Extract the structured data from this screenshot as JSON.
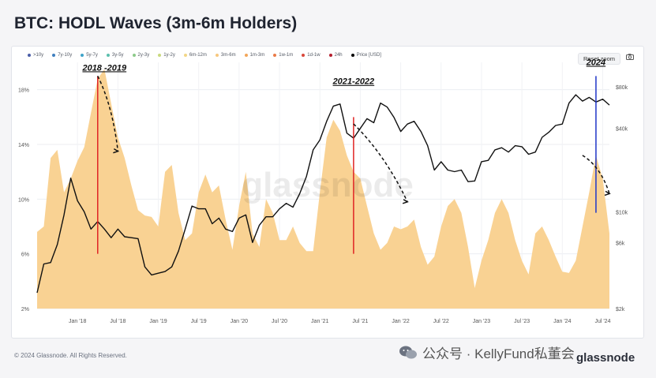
{
  "page": {
    "title": "BTC: HODL Waves (3m-6m Holders)",
    "reset_zoom": "Reset zoom",
    "copyright": "© 2024 Glassnode. All Rights Reserved.",
    "wechat_text": "公众号 · KellyFund私董会",
    "brand": "glassnode",
    "watermark": "glassnode",
    "camera_icon": "camera-icon",
    "wechat_icon": "wechat-icon"
  },
  "legend": [
    {
      "label": ">10y",
      "color": "#4a5ea8"
    },
    {
      "label": "7y-10y",
      "color": "#3f7fbf"
    },
    {
      "label": "5y-7y",
      "color": "#3fa3c9"
    },
    {
      "label": "3y-5y",
      "color": "#5cbfae"
    },
    {
      "label": "2y-3y",
      "color": "#8cca8a"
    },
    {
      "label": "1y-2y",
      "color": "#c9d97d"
    },
    {
      "label": "6m-12m",
      "color": "#f2d686"
    },
    {
      "label": "3m-6m",
      "color": "#f7c77d"
    },
    {
      "label": "1m-3m",
      "color": "#f2a65a"
    },
    {
      "label": "1w-1m",
      "color": "#ea7b48"
    },
    {
      "label": "1d-1w",
      "color": "#d9483b"
    },
    {
      "label": "24h",
      "color": "#b51f2e"
    },
    {
      "label": "Price [USD]",
      "color": "#000000"
    }
  ],
  "annotations": [
    "2018 -2019",
    "2021-2022",
    "2024"
  ],
  "chart_data": {
    "type": "area",
    "x_ticks": [
      "Jan '18",
      "Jul '18",
      "Jan '19",
      "Jul '19",
      "Jan '20",
      "Jul '20",
      "Jan '21",
      "Jul '21",
      "Jan '22",
      "Jul '22",
      "Jan '23",
      "Jul '23",
      "Jan '24",
      "Jul '24"
    ],
    "y_left_ticks": [
      "18%",
      "14%",
      "10%",
      "6%",
      "2%"
    ],
    "y_right_ticks": [
      "$80k",
      "$40k",
      "$10k",
      "$6k",
      "$2k"
    ],
    "y_left_range": [
      2,
      20
    ],
    "y_right_scale": "log",
    "grid": true,
    "legend_position": "top",
    "series": [
      {
        "name": "3m-6m",
        "axis": "left",
        "color": "#f9d293",
        "x": [
          "2017-07",
          "2017-08",
          "2017-09",
          "2017-10",
          "2017-11",
          "2017-12",
          "2018-01",
          "2018-02",
          "2018-03",
          "2018-04",
          "2018-05",
          "2018-06",
          "2018-07",
          "2018-08",
          "2018-09",
          "2018-10",
          "2018-11",
          "2018-12",
          "2019-01",
          "2019-02",
          "2019-03",
          "2019-04",
          "2019-05",
          "2019-06",
          "2019-07",
          "2019-08",
          "2019-09",
          "2019-10",
          "2019-11",
          "2019-12",
          "2020-01",
          "2020-02",
          "2020-03",
          "2020-04",
          "2020-05",
          "2020-06",
          "2020-07",
          "2020-08",
          "2020-09",
          "2020-10",
          "2020-11",
          "2020-12",
          "2021-01",
          "2021-02",
          "2021-03",
          "2021-04",
          "2021-05",
          "2021-06",
          "2021-07",
          "2021-08",
          "2021-09",
          "2021-10",
          "2021-11",
          "2021-12",
          "2022-01",
          "2022-02",
          "2022-03",
          "2022-04",
          "2022-05",
          "2022-06",
          "2022-07",
          "2022-08",
          "2022-09",
          "2022-10",
          "2022-11",
          "2022-12",
          "2023-01",
          "2023-02",
          "2023-03",
          "2023-04",
          "2023-05",
          "2023-06",
          "2023-07",
          "2023-08",
          "2023-09",
          "2023-10",
          "2023-11",
          "2023-12",
          "2024-01",
          "2024-02",
          "2024-03",
          "2024-04",
          "2024-05",
          "2024-06",
          "2024-07",
          "2024-08"
        ],
        "values": [
          7.6,
          8.0,
          13.0,
          13.6,
          10.5,
          11.5,
          12.8,
          13.8,
          16.3,
          18.8,
          19.5,
          17.0,
          14.5,
          13.0,
          11.0,
          9.2,
          8.8,
          8.7,
          8.0,
          12.0,
          12.5,
          9.0,
          7.0,
          7.5,
          10.5,
          11.8,
          10.5,
          11.0,
          8.5,
          6.3,
          9.5,
          12.0,
          7.5,
          6.5,
          10.0,
          9.0,
          7.0,
          7.0,
          8.0,
          6.8,
          6.2,
          6.2,
          10.5,
          14.5,
          15.8,
          15.0,
          13.2,
          12.0,
          11.5,
          9.5,
          7.5,
          6.3,
          6.8,
          8.0,
          7.8,
          8.0,
          8.5,
          6.5,
          5.2,
          5.8,
          8.0,
          9.5,
          10.0,
          9.0,
          6.5,
          3.5,
          5.5,
          7.0,
          9.0,
          10.0,
          9.0,
          7.0,
          5.5,
          4.5,
          7.5,
          8.0,
          7.0,
          5.8,
          4.7,
          4.6,
          5.5,
          8.0,
          10.5,
          13.2,
          11.5,
          7.5
        ]
      },
      {
        "name": "Price [USD]",
        "axis": "right",
        "color": "#111111",
        "x": [
          "2017-07",
          "2017-08",
          "2017-09",
          "2017-10",
          "2017-11",
          "2017-12",
          "2018-01",
          "2018-02",
          "2018-03",
          "2018-04",
          "2018-05",
          "2018-06",
          "2018-07",
          "2018-08",
          "2018-09",
          "2018-10",
          "2018-11",
          "2018-12",
          "2019-01",
          "2019-02",
          "2019-03",
          "2019-04",
          "2019-05",
          "2019-06",
          "2019-07",
          "2019-08",
          "2019-09",
          "2019-10",
          "2019-11",
          "2019-12",
          "2020-01",
          "2020-02",
          "2020-03",
          "2020-04",
          "2020-05",
          "2020-06",
          "2020-07",
          "2020-08",
          "2020-09",
          "2020-10",
          "2020-11",
          "2020-12",
          "2021-01",
          "2021-02",
          "2021-03",
          "2021-04",
          "2021-05",
          "2021-06",
          "2021-07",
          "2021-08",
          "2021-09",
          "2021-10",
          "2021-11",
          "2021-12",
          "2022-01",
          "2022-02",
          "2022-03",
          "2022-04",
          "2022-05",
          "2022-06",
          "2022-07",
          "2022-08",
          "2022-09",
          "2022-10",
          "2022-11",
          "2022-12",
          "2023-01",
          "2023-02",
          "2023-03",
          "2023-04",
          "2023-05",
          "2023-06",
          "2023-07",
          "2023-08",
          "2023-09",
          "2023-10",
          "2023-11",
          "2023-12",
          "2024-01",
          "2024-02",
          "2024-03",
          "2024-04",
          "2024-05",
          "2024-06",
          "2024-07",
          "2024-08"
        ],
        "values": [
          2600,
          4200,
          4300,
          5800,
          9500,
          17500,
          12000,
          10000,
          7500,
          8500,
          7500,
          6500,
          7500,
          6600,
          6500,
          6400,
          4000,
          3500,
          3600,
          3700,
          4000,
          5200,
          7500,
          11000,
          10500,
          10500,
          8200,
          9000,
          7500,
          7200,
          9000,
          9500,
          6000,
          8000,
          9200,
          9200,
          10500,
          11500,
          10800,
          13500,
          18000,
          28000,
          33000,
          45000,
          58000,
          60000,
          37000,
          34000,
          40000,
          47000,
          44000,
          61000,
          57000,
          48000,
          38000,
          43000,
          45000,
          38000,
          30000,
          20000,
          23000,
          20000,
          19500,
          20000,
          16500,
          16700,
          23000,
          23500,
          28000,
          29000,
          27000,
          30000,
          29500,
          26000,
          27000,
          34500,
          37500,
          42000,
          43000,
          61000,
          70000,
          63000,
          67000,
          62000,
          65000,
          59000
        ]
      }
    ],
    "markers": [
      {
        "date": "2018-04",
        "color": "#e02424",
        "from_pct": 6.0,
        "to_pct": 19.0
      },
      {
        "date": "2021-06",
        "color": "#e02424",
        "from_pct": 6.0,
        "to_pct": 16.0
      },
      {
        "date": "2024-06",
        "color": "#1f36c8",
        "from_pct": 9.0,
        "to_pct": 19.0
      }
    ]
  }
}
